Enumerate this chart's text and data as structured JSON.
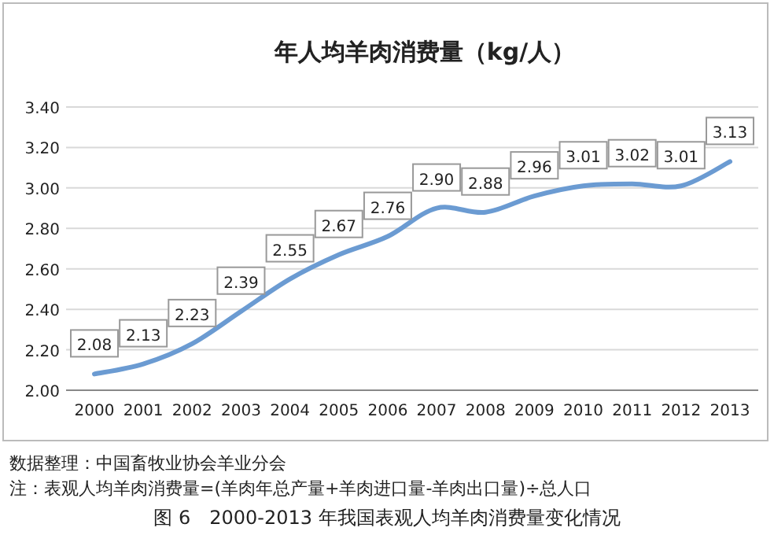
{
  "chart_data": {
    "type": "line",
    "title": "年人均羊肉消费量（kg/人）",
    "categories": [
      "2000",
      "2001",
      "2002",
      "2003",
      "2004",
      "2005",
      "2006",
      "2007",
      "2008",
      "2009",
      "2010",
      "2011",
      "2012",
      "2013"
    ],
    "values": [
      2.08,
      2.13,
      2.23,
      2.39,
      2.55,
      2.67,
      2.76,
      2.9,
      2.88,
      2.96,
      3.01,
      3.02,
      3.01,
      3.13
    ],
    "value_labels": [
      "2.08",
      "2.13",
      "2.23",
      "2.39",
      "2.55",
      "2.67",
      "2.76",
      "2.90",
      "2.88",
      "2.96",
      "3.01",
      "3.02",
      "3.01",
      "3.13"
    ],
    "color": "#6b9bd2",
    "ylim": [
      2.0,
      3.4
    ],
    "yticks": [
      {
        "value": 2.0,
        "label": "2.00"
      },
      {
        "value": 2.2,
        "label": "2.20"
      },
      {
        "value": 2.4,
        "label": "2.40"
      },
      {
        "value": 2.6,
        "label": "2.60"
      },
      {
        "value": 2.8,
        "label": "2.80"
      },
      {
        "value": 3.0,
        "label": "3.00"
      },
      {
        "value": 3.2,
        "label": "3.20"
      },
      {
        "value": 3.4,
        "label": "3.40"
      }
    ],
    "grid": "y",
    "annotations": [
      "数据整理：中国畜牧业协会羊业分会",
      "注：表观人均羊肉消费量=(羊肉年总产量+羊肉进口量-羊肉出口量)÷总人口",
      "图 6　2000-2013 年我国表观人均羊肉消费量变化情况"
    ]
  }
}
